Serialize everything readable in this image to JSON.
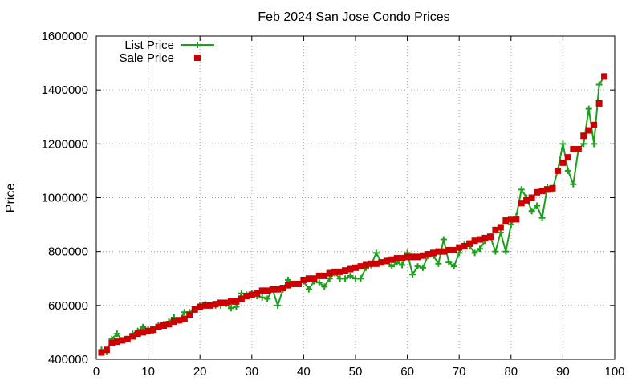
{
  "chart_data": {
    "type": "line",
    "title": "Feb 2024 San Jose Condo Prices",
    "xlabel": "",
    "ylabel": "Price",
    "xlim": [
      0,
      100
    ],
    "ylim": [
      400000,
      1600000
    ],
    "x_ticks": [
      "0",
      "10",
      "20",
      "30",
      "40",
      "50",
      "60",
      "70",
      "80",
      "90",
      "100"
    ],
    "y_ticks": [
      "400000",
      "600000",
      "800000",
      "1000000",
      "1200000",
      "1400000",
      "1600000"
    ],
    "grid": true,
    "legend_position": "top-left",
    "series": [
      {
        "name": "List Price",
        "color": "#1aa01a",
        "marker": "plus",
        "x": [
          1,
          2,
          3,
          4,
          5,
          6,
          7,
          8,
          9,
          10,
          11,
          12,
          13,
          14,
          15,
          16,
          17,
          18,
          19,
          20,
          21,
          22,
          23,
          24,
          25,
          26,
          27,
          28,
          29,
          30,
          31,
          32,
          33,
          34,
          35,
          36,
          37,
          38,
          39,
          40,
          41,
          42,
          43,
          44,
          45,
          46,
          47,
          48,
          49,
          50,
          51,
          52,
          53,
          54,
          55,
          56,
          57,
          58,
          59,
          60,
          61,
          62,
          63,
          64,
          65,
          66,
          67,
          68,
          69,
          70,
          71,
          72,
          73,
          74,
          75,
          76,
          77,
          78,
          79,
          80,
          81,
          82,
          83,
          84,
          85,
          86,
          87,
          88,
          89,
          90,
          91,
          92,
          93,
          94,
          95,
          96,
          97,
          98
        ],
        "values": [
          435000,
          430000,
          475000,
          495000,
          470000,
          475000,
          495000,
          505000,
          520000,
          510000,
          505000,
          525000,
          530000,
          540000,
          555000,
          545000,
          575000,
          575000,
          585000,
          600000,
          605000,
          600000,
          600000,
          600000,
          605000,
          590000,
          595000,
          645000,
          640000,
          645000,
          635000,
          630000,
          625000,
          660000,
          600000,
          660000,
          695000,
          680000,
          680000,
          690000,
          660000,
          690000,
          685000,
          670000,
          700000,
          720000,
          700000,
          700000,
          710000,
          700000,
          700000,
          740000,
          750000,
          795000,
          760000,
          765000,
          745000,
          760000,
          750000,
          795000,
          715000,
          745000,
          740000,
          785000,
          785000,
          755000,
          845000,
          760000,
          745000,
          795000,
          825000,
          820000,
          795000,
          810000,
          840000,
          855000,
          800000,
          870000,
          800000,
          900000,
          930000,
          1030000,
          1000000,
          950000,
          970000,
          925000,
          1040000,
          1030000,
          1100000,
          1200000,
          1100000,
          1050000,
          1180000,
          1200000,
          1330000,
          1200000,
          1420000,
          1450000
        ]
      },
      {
        "name": "Sale Price",
        "color": "#cc0000",
        "marker": "square",
        "x": [
          1,
          2,
          3,
          4,
          5,
          6,
          7,
          8,
          9,
          10,
          11,
          12,
          13,
          14,
          15,
          16,
          17,
          18,
          19,
          20,
          21,
          22,
          23,
          24,
          25,
          26,
          27,
          28,
          29,
          30,
          31,
          32,
          33,
          34,
          35,
          36,
          37,
          38,
          39,
          40,
          41,
          42,
          43,
          44,
          45,
          46,
          47,
          48,
          49,
          50,
          51,
          52,
          53,
          54,
          55,
          56,
          57,
          58,
          59,
          60,
          61,
          62,
          63,
          64,
          65,
          66,
          67,
          68,
          69,
          70,
          71,
          72,
          73,
          74,
          75,
          76,
          77,
          78,
          79,
          80,
          81,
          82,
          83,
          84,
          85,
          86,
          87,
          88,
          89,
          90,
          91,
          92,
          93,
          94,
          95,
          96,
          97,
          98
        ],
        "values": [
          425000,
          435000,
          460000,
          465000,
          470000,
          475000,
          485000,
          495000,
          500000,
          505000,
          510000,
          520000,
          525000,
          530000,
          540000,
          545000,
          550000,
          565000,
          585000,
          595000,
          600000,
          600000,
          605000,
          610000,
          610000,
          615000,
          615000,
          625000,
          635000,
          640000,
          645000,
          655000,
          655000,
          660000,
          660000,
          665000,
          675000,
          680000,
          680000,
          695000,
          700000,
          700000,
          710000,
          710000,
          720000,
          725000,
          725000,
          730000,
          735000,
          740000,
          745000,
          750000,
          755000,
          755000,
          760000,
          765000,
          770000,
          775000,
          775000,
          780000,
          780000,
          780000,
          785000,
          790000,
          795000,
          800000,
          800000,
          805000,
          805000,
          815000,
          820000,
          830000,
          840000,
          845000,
          850000,
          855000,
          880000,
          890000,
          915000,
          920000,
          920000,
          980000,
          990000,
          1000000,
          1020000,
          1025000,
          1030000,
          1035000,
          1100000,
          1130000,
          1150000,
          1180000,
          1180000,
          1230000,
          1250000,
          1270000,
          1350000,
          1450000
        ]
      }
    ]
  }
}
